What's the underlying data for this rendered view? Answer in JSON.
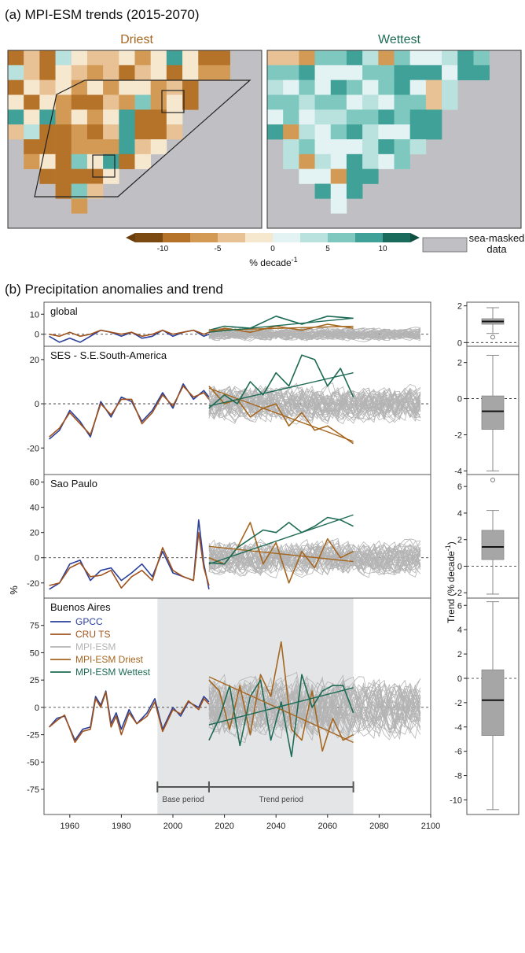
{
  "panel_a": {
    "title": "(a) MPI-ESM trends (2015-2070)",
    "maps": [
      {
        "label": "Driest",
        "color": "#a5661f"
      },
      {
        "label": "Wettest",
        "color": "#1e6b55"
      }
    ],
    "colorbar": {
      "ticks": [
        "-10",
        "-5",
        "0",
        "5",
        "10"
      ],
      "label_main": "% decade",
      "label_sup": "-1",
      "colors": [
        "#7a4a12",
        "#b5732a",
        "#d39a55",
        "#e8c294",
        "#f6e7cf",
        "#e3f2f2",
        "#b9e1de",
        "#7fc8c0",
        "#3fa197",
        "#1b6b5c"
      ],
      "mask_label_1": "sea-masked",
      "mask_label_2": "data",
      "mask_color": "#c0c0c4"
    }
  },
  "panel_b": {
    "title": "(b) Precipitation anomalies and trend",
    "ylabel": "%",
    "trend_ylabel": "Trend (% decade",
    "trend_ylabel_sup": "-1",
    "trend_ylabel_close": ")",
    "legend": [
      {
        "label": "GPCC",
        "color": "#2a3f9a"
      },
      {
        "label": "CRU TS",
        "color": "#a0521c"
      },
      {
        "label": "MPI-ESM",
        "color": "#b4b4b4"
      },
      {
        "label": "MPI-ESM Driest",
        "color": "#a5661f"
      },
      {
        "label": "MPI-ESM Wettest",
        "color": "#1e6b55"
      }
    ],
    "base_period_label": "Base period",
    "trend_period_label": "Trend period"
  },
  "chart_data": [
    {
      "type": "line",
      "region": "global",
      "x_ticks": [
        1960,
        1980,
        2000,
        2020,
        2040,
        2060,
        2080,
        2100
      ],
      "xlim": [
        1950,
        2100
      ],
      "yticks": [
        0,
        10
      ],
      "ylim": [
        -6,
        16
      ],
      "series": [
        {
          "name": "GPCC",
          "x": [
            1952,
            1956,
            1960,
            1964,
            1968,
            1972,
            1976,
            1980,
            1984,
            1988,
            1992,
            1996,
            2000,
            2004,
            2008,
            2012,
            2014
          ],
          "y": [
            -1,
            -4,
            -2,
            -4,
            -1,
            2,
            1,
            -1,
            1,
            -2,
            -1,
            2,
            -1,
            1,
            2,
            -1,
            0
          ]
        },
        {
          "name": "CRU TS",
          "x": [
            1952,
            1956,
            1960,
            1964,
            1968,
            1972,
            1976,
            1980,
            1984,
            1988,
            1992,
            1996,
            2000,
            2004,
            2008,
            2012,
            2014
          ],
          "y": [
            0,
            -1,
            1,
            -1,
            0,
            2,
            1,
            0,
            1,
            -1,
            0,
            2,
            0,
            1,
            2,
            0,
            1
          ]
        },
        {
          "name": "MPI-ESM Driest",
          "x": [
            2014,
            2020,
            2030,
            2040,
            2050,
            2060,
            2070
          ],
          "y": [
            1,
            3,
            1,
            4,
            2,
            5,
            3
          ]
        },
        {
          "name": "MPI-ESM Wettest",
          "x": [
            2014,
            2020,
            2030,
            2040,
            2050,
            2060,
            2070
          ],
          "y": [
            2,
            4,
            3,
            9,
            5,
            9,
            8
          ]
        }
      ],
      "trend_lines": [
        {
          "name": "MPI-ESM Driest",
          "x": [
            2014,
            2070
          ],
          "y": [
            2,
            4
          ]
        },
        {
          "name": "MPI-ESM Wettest",
          "x": [
            2014,
            2070
          ],
          "y": [
            1,
            8
          ]
        }
      ],
      "box": {
        "yticks": [
          0,
          2
        ],
        "ylim": [
          -0.2,
          2.2
        ],
        "q1": 1.0,
        "median": 1.15,
        "q3": 1.3,
        "whisker_low": 0.5,
        "whisker_high": 1.9,
        "outliers": [
          0.3
        ]
      }
    },
    {
      "type": "line",
      "region": "SES - S.E.South-America",
      "yticks": [
        -20,
        0,
        20
      ],
      "ylim": [
        -32,
        26
      ],
      "series": [
        {
          "name": "GPCC",
          "x": [
            1952,
            1956,
            1960,
            1964,
            1968,
            1972,
            1976,
            1980,
            1984,
            1988,
            1992,
            1996,
            2000,
            2004,
            2008,
            2012,
            2014
          ],
          "y": [
            -16,
            -12,
            -3,
            -8,
            -15,
            1,
            -6,
            3,
            1,
            -8,
            -3,
            5,
            -2,
            9,
            2,
            6,
            3
          ]
        },
        {
          "name": "CRU TS",
          "x": [
            1952,
            1956,
            1960,
            1964,
            1968,
            1972,
            1976,
            1980,
            1984,
            1988,
            1992,
            1996,
            2000,
            2004,
            2008,
            2012,
            2014
          ],
          "y": [
            -15,
            -11,
            -4,
            -9,
            -14,
            0,
            -5,
            2,
            2,
            -9,
            -4,
            4,
            -1,
            8,
            3,
            5,
            2
          ]
        },
        {
          "name": "MPI-ESM Driest",
          "x": [
            2014,
            2020,
            2025,
            2030,
            2035,
            2040,
            2045,
            2050,
            2055,
            2060,
            2065,
            2070
          ],
          "y": [
            8,
            0,
            2,
            -6,
            -2,
            0,
            -10,
            -4,
            -12,
            -10,
            -14,
            -18
          ]
        },
        {
          "name": "MPI-ESM Wettest",
          "x": [
            2014,
            2020,
            2025,
            2030,
            2035,
            2040,
            2045,
            2050,
            2055,
            2060,
            2065,
            2070
          ],
          "y": [
            -2,
            4,
            0,
            10,
            4,
            14,
            8,
            22,
            20,
            8,
            16,
            3
          ]
        }
      ],
      "trend_lines": [
        {
          "name": "MPI-ESM Driest",
          "x": [
            2014,
            2070
          ],
          "y": [
            7,
            -17
          ]
        },
        {
          "name": "MPI-ESM Wettest",
          "x": [
            2014,
            2070
          ],
          "y": [
            -1,
            14
          ]
        }
      ],
      "box": {
        "yticks": [
          -4,
          -2,
          0,
          2
        ],
        "ylim": [
          -4.2,
          2.9
        ],
        "q1": -1.7,
        "median": -0.7,
        "q3": 0.15,
        "whisker_low": -4.0,
        "whisker_high": 2.4,
        "outliers": [
          -4.5
        ]
      }
    },
    {
      "type": "line",
      "region": "Sao Paulo",
      "yticks": [
        -20,
        0,
        20,
        40,
        60
      ],
      "ylim": [
        -32,
        66
      ],
      "series": [
        {
          "name": "GPCC",
          "x": [
            1952,
            1956,
            1960,
            1964,
            1968,
            1972,
            1976,
            1980,
            1984,
            1988,
            1992,
            1996,
            2000,
            2004,
            2008,
            2010,
            2012,
            2014
          ],
          "y": [
            -25,
            -20,
            -5,
            -2,
            -18,
            -10,
            -8,
            -18,
            -12,
            -5,
            -15,
            5,
            -12,
            -15,
            -18,
            30,
            -5,
            -25
          ]
        },
        {
          "name": "CRU TS",
          "x": [
            1952,
            1956,
            1960,
            1964,
            1968,
            1972,
            1976,
            1980,
            1984,
            1988,
            1992,
            1996,
            2000,
            2004,
            2008,
            2010,
            2012,
            2014
          ],
          "y": [
            -22,
            -20,
            -8,
            -4,
            -15,
            -14,
            -10,
            -24,
            -15,
            -10,
            -18,
            8,
            -10,
            -15,
            -18,
            20,
            -8,
            -22
          ]
        },
        {
          "name": "MPI-ESM Driest",
          "x": [
            2014,
            2020,
            2025,
            2030,
            2035,
            2040,
            2045,
            2050,
            2055,
            2060,
            2065,
            2070
          ],
          "y": [
            0,
            -5,
            8,
            28,
            -5,
            12,
            -20,
            5,
            -8,
            15,
            0,
            5
          ]
        },
        {
          "name": "MPI-ESM Wettest",
          "x": [
            2014,
            2020,
            2025,
            2030,
            2035,
            2040,
            2045,
            2050,
            2055,
            2060,
            2065,
            2070
          ],
          "y": [
            -4,
            -5,
            8,
            15,
            22,
            20,
            28,
            20,
            25,
            32,
            30,
            25
          ]
        }
      ],
      "trend_lines": [
        {
          "name": "MPI-ESM Driest",
          "x": [
            2014,
            2070
          ],
          "y": [
            9,
            -3
          ]
        },
        {
          "name": "MPI-ESM Wettest",
          "x": [
            2014,
            2070
          ],
          "y": [
            -5,
            34
          ]
        }
      ],
      "box": {
        "yticks": [
          -2,
          0,
          2,
          4,
          6
        ],
        "ylim": [
          -2.4,
          6.9
        ],
        "q1": 0.5,
        "median": 1.45,
        "q3": 2.7,
        "whisker_low": -2.1,
        "whisker_high": 4.2,
        "outliers": []
      }
    },
    {
      "type": "line",
      "region": "Buenos Aires",
      "yticks": [
        -75,
        -50,
        -25,
        0,
        25,
        50,
        75
      ],
      "ylim": [
        -98,
        100
      ],
      "series": [
        {
          "name": "GPCC",
          "x": [
            1952,
            1955,
            1958,
            1962,
            1965,
            1968,
            1970,
            1972,
            1974,
            1976,
            1978,
            1980,
            1983,
            1986,
            1990,
            1993,
            1996,
            2000,
            2003,
            2006,
            2010,
            2012,
            2014
          ],
          "y": [
            -18,
            -10,
            -8,
            -30,
            -20,
            -18,
            10,
            2,
            15,
            -15,
            -5,
            -20,
            -2,
            -15,
            -5,
            8,
            -20,
            0,
            -8,
            5,
            0,
            10,
            5
          ]
        },
        {
          "name": "CRU TS",
          "x": [
            1952,
            1955,
            1958,
            1962,
            1965,
            1968,
            1970,
            1972,
            1974,
            1976,
            1978,
            1980,
            1983,
            1986,
            1990,
            1993,
            1996,
            2000,
            2003,
            2006,
            2010,
            2012,
            2014
          ],
          "y": [
            -18,
            -12,
            -7,
            -32,
            -22,
            -20,
            8,
            0,
            14,
            -18,
            -8,
            -25,
            -5,
            -15,
            -8,
            5,
            -22,
            -2,
            -6,
            6,
            -2,
            8,
            3
          ]
        },
        {
          "name": "MPI-ESM Driest",
          "x": [
            2014,
            2018,
            2022,
            2026,
            2030,
            2034,
            2038,
            2042,
            2046,
            2050,
            2054,
            2058,
            2062,
            2066,
            2070
          ],
          "y": [
            25,
            15,
            -20,
            20,
            -25,
            30,
            10,
            60,
            -20,
            -30,
            15,
            -40,
            -10,
            -30,
            -25
          ]
        },
        {
          "name": "MPI-ESM Wettest",
          "x": [
            2014,
            2018,
            2022,
            2026,
            2030,
            2034,
            2038,
            2042,
            2046,
            2050,
            2054,
            2058,
            2062,
            2066,
            2070
          ],
          "y": [
            -30,
            -10,
            20,
            -35,
            10,
            25,
            -30,
            5,
            -45,
            30,
            0,
            15,
            20,
            20,
            -5
          ]
        }
      ],
      "trend_lines": [
        {
          "name": "MPI-ESM Driest",
          "x": [
            2014,
            2070
          ],
          "y": [
            28,
            -32
          ]
        },
        {
          "name": "MPI-ESM Wettest",
          "x": [
            2014,
            2070
          ],
          "y": [
            -16,
            18
          ]
        }
      ],
      "box": {
        "yticks": [
          -10,
          -8,
          -6,
          -4,
          -2,
          0,
          2,
          4,
          6
        ],
        "ylim": [
          -11.2,
          6.6
        ],
        "q1": -4.7,
        "median": -1.8,
        "q3": 0.7,
        "whisker_low": -10.8,
        "whisker_high": 6.3,
        "outliers": []
      }
    }
  ]
}
